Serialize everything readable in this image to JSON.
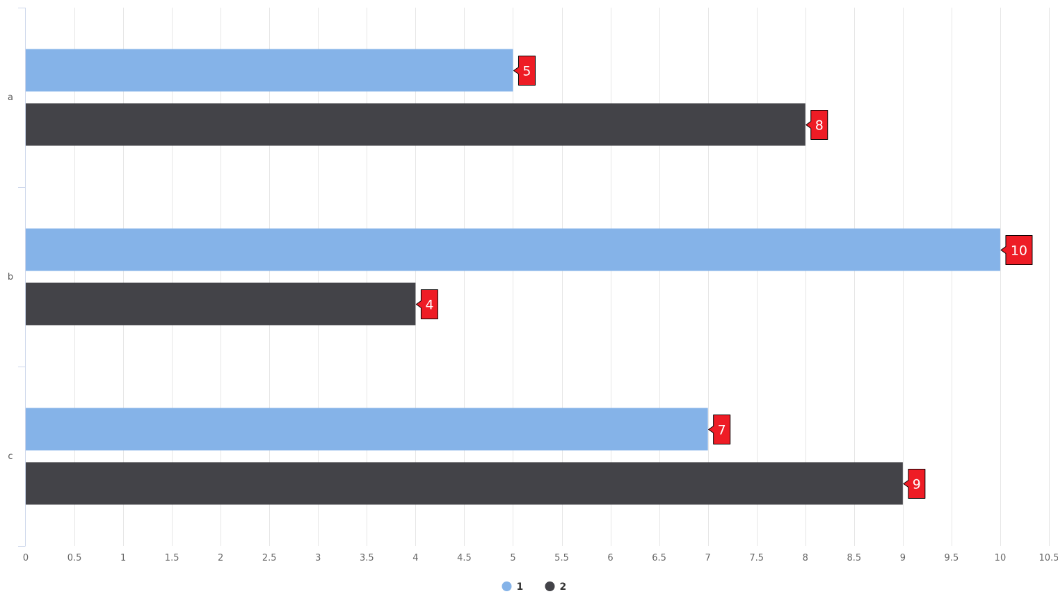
{
  "chart_data": {
    "type": "bar",
    "orientation": "horizontal",
    "categories": [
      "a",
      "b",
      "c"
    ],
    "series": [
      {
        "name": "1",
        "color": "#85b3e8",
        "values": [
          5,
          10,
          7
        ]
      },
      {
        "name": "2",
        "color": "#434348",
        "values": [
          8,
          4,
          9
        ]
      }
    ],
    "xlim": [
      0,
      10.5
    ],
    "x_ticks": [
      "0",
      "0.5",
      "1",
      "1.5",
      "2",
      "2.5",
      "3",
      "3.5",
      "4",
      "4.5",
      "5",
      "5.5",
      "6",
      "6.5",
      "7",
      "7.5",
      "8",
      "8.5",
      "9",
      "9.5",
      "10",
      "10.5"
    ],
    "title": "",
    "xlabel": "",
    "ylabel": "",
    "grid": true,
    "legend_position": "bottom-center",
    "data_label_color": "#ee1c25"
  }
}
